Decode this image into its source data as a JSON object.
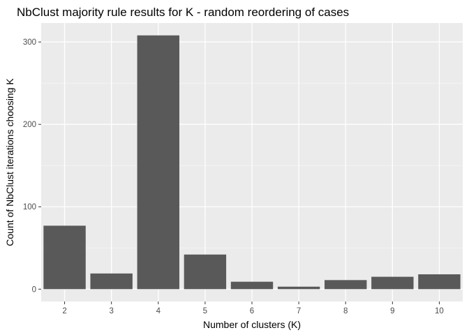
{
  "chart_data": {
    "type": "bar",
    "title": "NbClust majority rule results for K - random reordering of cases",
    "xlabel": "Number of clusters (K)",
    "ylabel": "Count of NbClust iterations choosing K",
    "categories": [
      "2",
      "3",
      "4",
      "5",
      "6",
      "7",
      "8",
      "9",
      "10"
    ],
    "values": [
      77,
      19,
      308,
      42,
      9,
      3,
      11,
      15,
      18
    ],
    "yticks": [
      0,
      100,
      200,
      300
    ],
    "ylim": [
      -15,
      323
    ],
    "grid": true,
    "legend": "none",
    "colors": {
      "bar": "#595959",
      "panel": "#ebebeb",
      "grid_major": "#ffffff",
      "grid_minor": "#f5f5f5",
      "tick_text": "#4d4d4d"
    }
  }
}
